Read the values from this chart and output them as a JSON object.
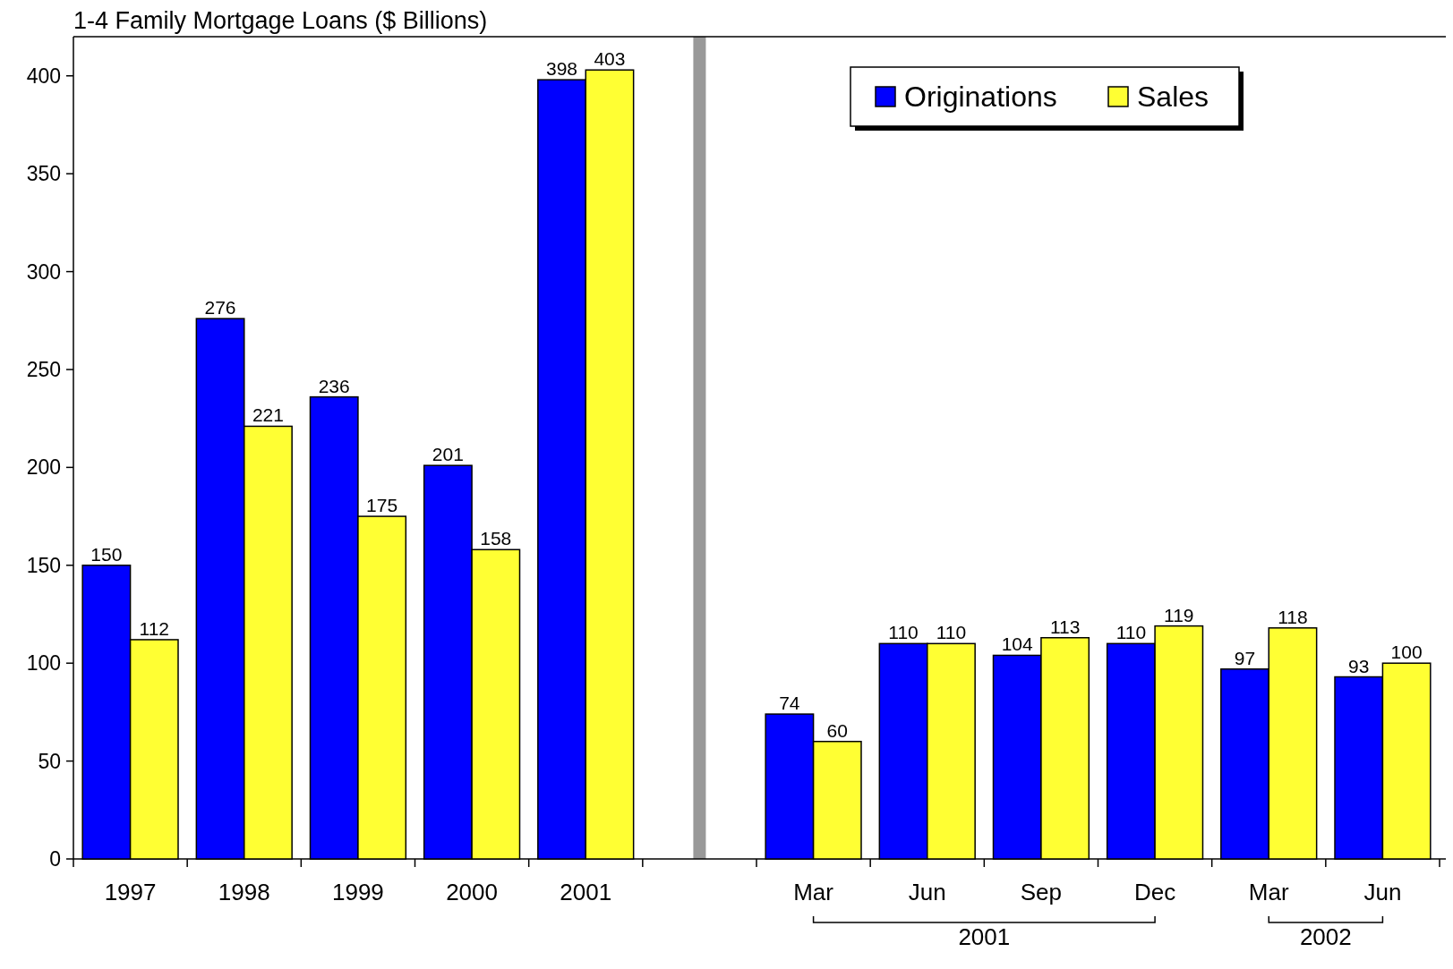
{
  "chart_data": {
    "type": "bar",
    "title": "1-4 Family Mortgage Loans ($ Billions)",
    "categories": [
      "1997",
      "1998",
      "1999",
      "2000",
      "2001",
      null,
      "Mar",
      "Jun",
      "Sep",
      "Dec",
      "Mar",
      "Jun"
    ],
    "series": [
      {
        "name": "Originations",
        "color": "#0000ff",
        "values": [
          150,
          276,
          236,
          201,
          398,
          null,
          74,
          110,
          104,
          110,
          97,
          93
        ]
      },
      {
        "name": "Sales",
        "color": "#ffff33",
        "values": [
          112,
          221,
          175,
          158,
          403,
          null,
          60,
          110,
          113,
          119,
          118,
          100
        ]
      }
    ],
    "ylim": [
      0,
      420
    ],
    "yticks": [
      0,
      50,
      100,
      150,
      200,
      250,
      300,
      350,
      400
    ],
    "data_labels": true,
    "legend": "top right",
    "annotations": [
      "2001",
      "2002"
    ]
  }
}
